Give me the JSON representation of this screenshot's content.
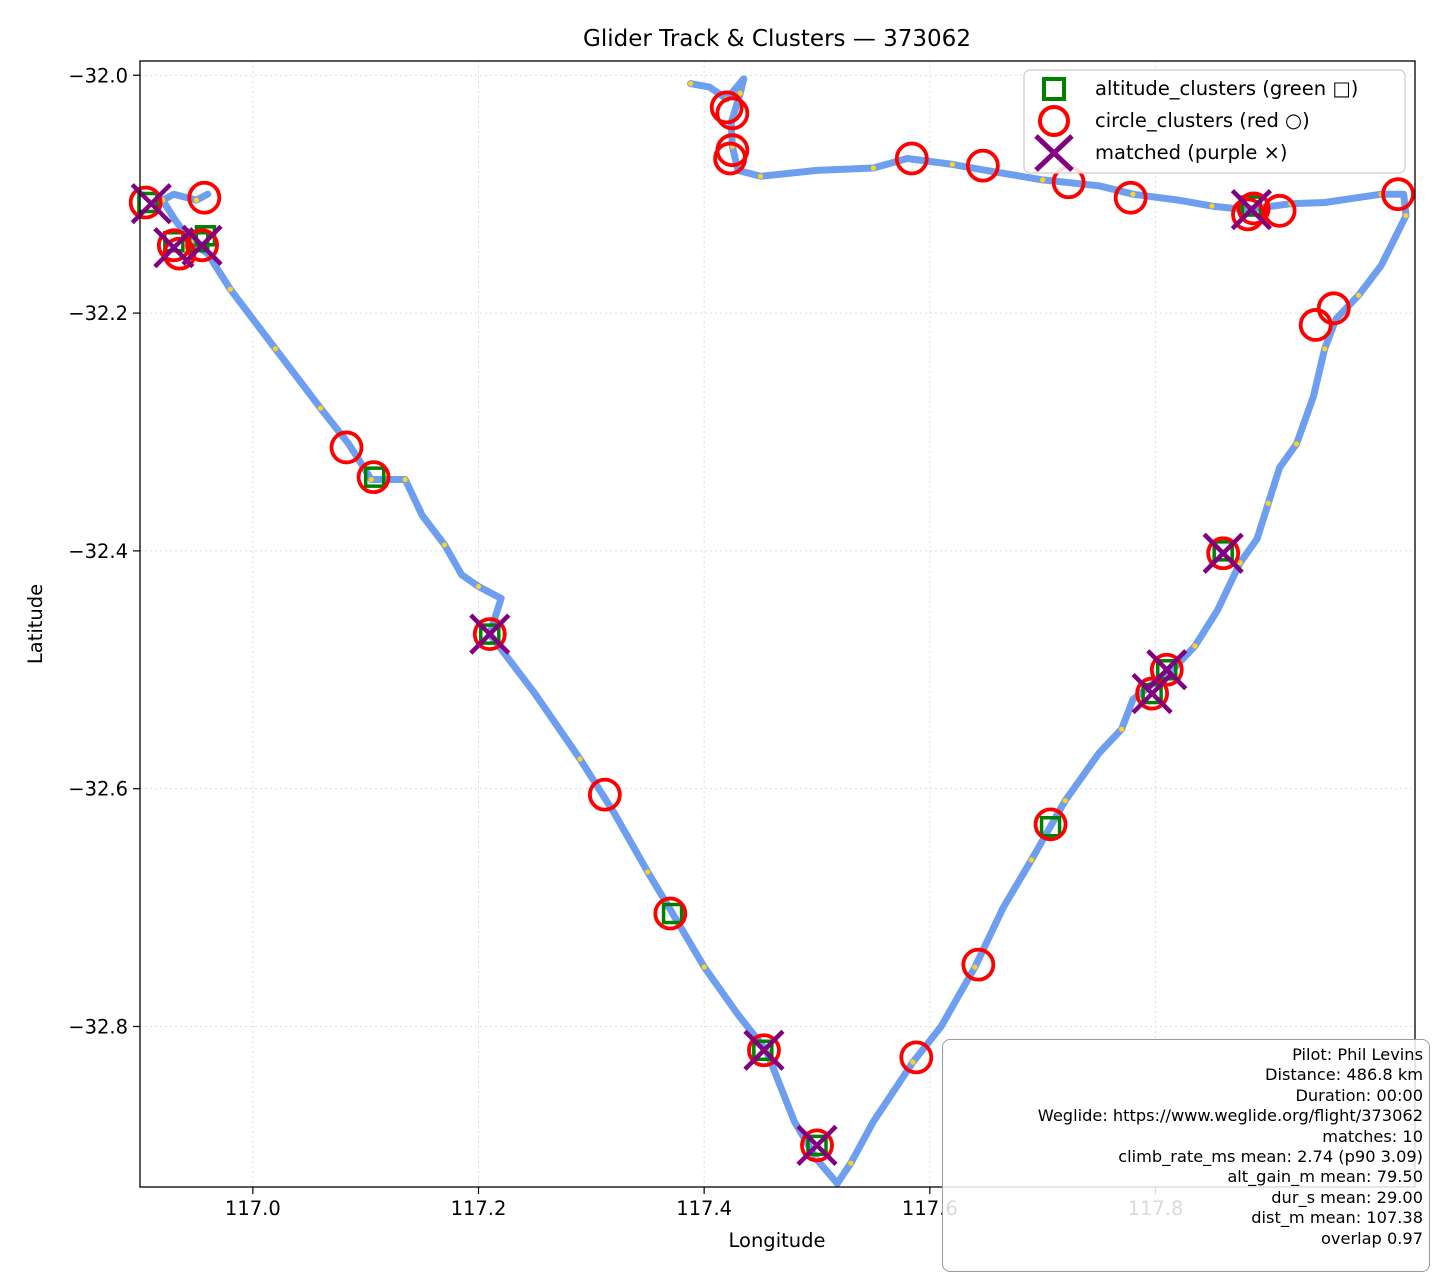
{
  "chart_data": {
    "type": "scatter",
    "title": "Glider Track & Clusters — 373062",
    "xlabel": "Longitude",
    "ylabel": "Latitude",
    "xlim": [
      116.9,
      118.03
    ],
    "ylim": [
      -32.935,
      -31.988
    ],
    "xticks": [
      117.0,
      117.2,
      117.4,
      117.6,
      117.8
    ],
    "xtick_labels": [
      "117.0",
      "117.2",
      "117.4",
      "117.6",
      "117.8"
    ],
    "yticks": [
      -32.0,
      -32.2,
      -32.4,
      -32.6,
      -32.8
    ],
    "ytick_labels": [
      "−32.0",
      "−32.2",
      "−32.4",
      "−32.6",
      "−32.8"
    ],
    "grid": true,
    "legend_position": "top-right",
    "colors": {
      "track": "#6699ee",
      "fix_points": "#ffd21f",
      "altitude_clusters": "#008000",
      "circle_clusters": "#ff0000",
      "matched": "#800080"
    },
    "series": [
      {
        "name": "track",
        "points": [
          [
            117.388,
            -32.007
          ],
          [
            117.405,
            -32.01
          ],
          [
            117.42,
            -32.02
          ],
          [
            117.435,
            -32.003
          ],
          [
            117.432,
            -32.015
          ],
          [
            117.424,
            -32.04
          ],
          [
            117.425,
            -32.06
          ],
          [
            117.43,
            -32.08
          ],
          [
            117.45,
            -32.085
          ],
          [
            117.5,
            -32.08
          ],
          [
            117.55,
            -32.078
          ],
          [
            117.58,
            -32.07
          ],
          [
            117.62,
            -32.075
          ],
          [
            117.65,
            -32.08
          ],
          [
            117.7,
            -32.088
          ],
          [
            117.75,
            -32.093
          ],
          [
            117.78,
            -32.1
          ],
          [
            117.82,
            -32.105
          ],
          [
            117.85,
            -32.11
          ],
          [
            117.88,
            -32.113
          ],
          [
            117.92,
            -32.108
          ],
          [
            117.95,
            -32.107
          ],
          [
            118.0,
            -32.1
          ],
          [
            118.02,
            -32.1
          ],
          [
            118.022,
            -32.118
          ],
          [
            118.0,
            -32.16
          ],
          [
            117.98,
            -32.185
          ],
          [
            117.96,
            -32.205
          ],
          [
            117.95,
            -32.23
          ],
          [
            117.94,
            -32.27
          ],
          [
            117.925,
            -32.31
          ],
          [
            117.91,
            -32.33
          ],
          [
            117.9,
            -32.36
          ],
          [
            117.89,
            -32.39
          ],
          [
            117.875,
            -32.41
          ],
          [
            117.855,
            -32.45
          ],
          [
            117.835,
            -32.48
          ],
          [
            117.815,
            -32.5
          ],
          [
            117.8,
            -32.51
          ],
          [
            117.78,
            -32.525
          ],
          [
            117.77,
            -32.55
          ],
          [
            117.75,
            -32.57
          ],
          [
            117.72,
            -32.61
          ],
          [
            117.705,
            -32.635
          ],
          [
            117.69,
            -32.66
          ],
          [
            117.665,
            -32.7
          ],
          [
            117.64,
            -32.75
          ],
          [
            117.61,
            -32.8
          ],
          [
            117.585,
            -32.83
          ],
          [
            117.55,
            -32.88
          ],
          [
            117.53,
            -32.915
          ],
          [
            117.518,
            -32.932
          ],
          [
            117.5,
            -32.912
          ],
          [
            117.48,
            -32.88
          ],
          [
            117.455,
            -32.82
          ],
          [
            117.43,
            -32.79
          ],
          [
            117.4,
            -32.75
          ],
          [
            117.372,
            -32.705
          ],
          [
            117.35,
            -32.67
          ],
          [
            117.32,
            -32.62
          ],
          [
            117.29,
            -32.575
          ],
          [
            117.25,
            -32.52
          ],
          [
            117.21,
            -32.47
          ],
          [
            117.22,
            -32.44
          ],
          [
            117.2,
            -32.43
          ],
          [
            117.185,
            -32.42
          ],
          [
            117.17,
            -32.395
          ],
          [
            117.15,
            -32.37
          ],
          [
            117.135,
            -32.34
          ],
          [
            117.12,
            -32.34
          ],
          [
            117.105,
            -32.34
          ],
          [
            117.085,
            -32.31
          ],
          [
            117.06,
            -32.28
          ],
          [
            117.04,
            -32.255
          ],
          [
            117.02,
            -32.23
          ],
          [
            117.0,
            -32.205
          ],
          [
            116.98,
            -32.18
          ],
          [
            116.96,
            -32.15
          ],
          [
            116.945,
            -32.14
          ],
          [
            116.93,
            -32.12
          ],
          [
            116.92,
            -32.105
          ],
          [
            116.93,
            -32.1
          ],
          [
            116.95,
            -32.105
          ],
          [
            116.96,
            -32.1
          ]
        ]
      },
      {
        "name": "altitude_clusters (green □)",
        "points": [
          [
            116.907,
            -32.107
          ],
          [
            116.93,
            -32.14
          ],
          [
            116.952,
            -32.14
          ],
          [
            116.958,
            -32.135
          ],
          [
            117.108,
            -32.338
          ],
          [
            117.21,
            -32.47
          ],
          [
            117.372,
            -32.705
          ],
          [
            117.452,
            -32.82
          ],
          [
            117.5,
            -32.9
          ],
          [
            117.707,
            -32.632
          ],
          [
            117.797,
            -32.52
          ],
          [
            117.81,
            -32.5
          ],
          [
            117.86,
            -32.4
          ],
          [
            117.885,
            -32.11
          ]
        ]
      },
      {
        "name": "circle_clusters (red ○)",
        "points": [
          [
            116.905,
            -32.107
          ],
          [
            116.957,
            -32.103
          ],
          [
            116.93,
            -32.143
          ],
          [
            116.935,
            -32.15
          ],
          [
            116.955,
            -32.143
          ],
          [
            117.083,
            -32.313
          ],
          [
            117.107,
            -32.338
          ],
          [
            117.21,
            -32.47
          ],
          [
            117.312,
            -32.605
          ],
          [
            117.37,
            -32.705
          ],
          [
            117.453,
            -32.82
          ],
          [
            117.5,
            -32.9
          ],
          [
            117.42,
            -32.027
          ],
          [
            117.425,
            -32.032
          ],
          [
            117.425,
            -32.063
          ],
          [
            117.423,
            -32.07
          ],
          [
            117.584,
            -32.07
          ],
          [
            117.647,
            -32.076
          ],
          [
            117.723,
            -32.09
          ],
          [
            117.778,
            -32.103
          ],
          [
            117.882,
            -32.117
          ],
          [
            117.887,
            -32.112
          ],
          [
            117.91,
            -32.114
          ],
          [
            118.015,
            -32.1
          ],
          [
            117.958,
            -32.196
          ],
          [
            117.942,
            -32.21
          ],
          [
            117.86,
            -32.402
          ],
          [
            117.81,
            -32.5
          ],
          [
            117.797,
            -32.52
          ],
          [
            117.707,
            -32.63
          ],
          [
            117.643,
            -32.748
          ],
          [
            117.588,
            -32.826
          ]
        ]
      },
      {
        "name": "matched (purple ×)",
        "points": [
          [
            116.91,
            -32.108
          ],
          [
            116.93,
            -32.145
          ],
          [
            116.955,
            -32.143
          ],
          [
            117.21,
            -32.47
          ],
          [
            117.453,
            -32.82
          ],
          [
            117.5,
            -32.9
          ],
          [
            117.797,
            -32.52
          ],
          [
            117.81,
            -32.5
          ],
          [
            117.86,
            -32.402
          ],
          [
            117.885,
            -32.113
          ]
        ]
      }
    ],
    "info_box": {
      "position": "bottom-right",
      "lines": [
        "Pilot: Phil Levins",
        "Distance: 486.8 km",
        "Duration: 00:00",
        "Weglide: https://www.weglide.org/flight/373062",
        "matches: 10",
        "climb_rate_ms mean: 2.74 (p90 3.09)",
        "alt_gain_m mean: 79.50",
        "dur_s mean: 29.00",
        "dist_m mean: 107.38",
        "overlap 0.97"
      ]
    }
  }
}
